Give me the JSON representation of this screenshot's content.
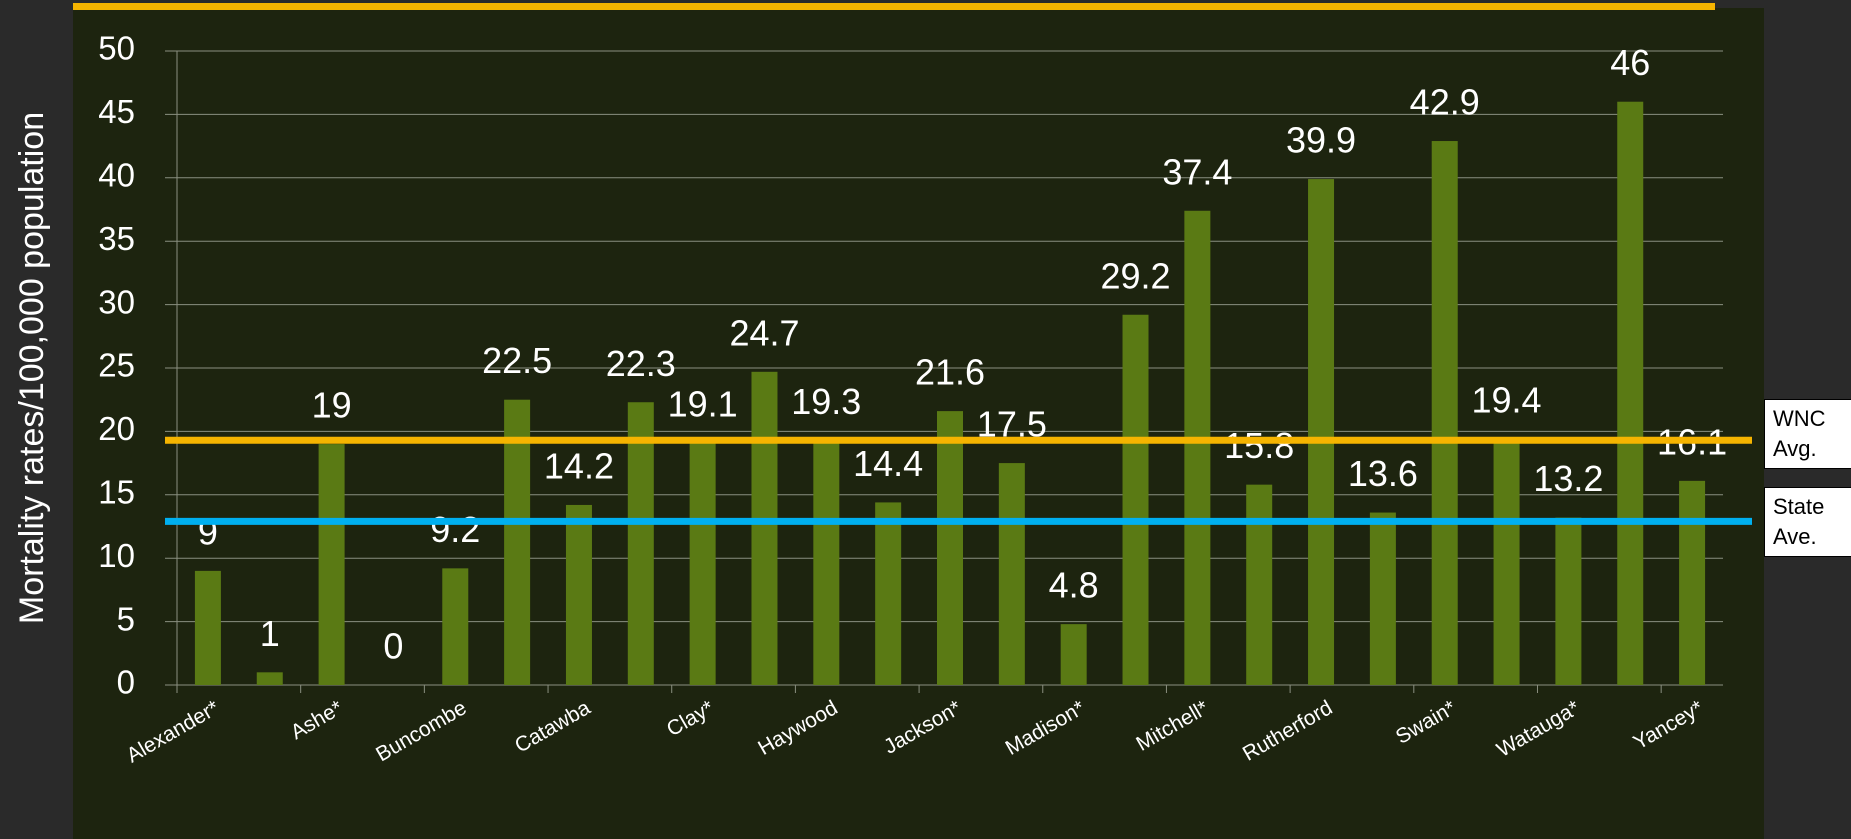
{
  "chart_data": {
    "type": "bar",
    "y_label": "Mortality rates/100,000  population",
    "categories": [
      "Alexander*",
      null,
      "Ashe*",
      null,
      "Buncombe",
      null,
      "Catawba",
      null,
      "Clay*",
      null,
      "Haywood",
      null,
      "Jackson*",
      null,
      "Madison*",
      null,
      "Mitchell*",
      null,
      "Rutherford",
      null,
      "Swain*",
      null,
      "Watauga*",
      null,
      "Yancey*"
    ],
    "values": [
      9,
      1,
      19,
      0,
      9.2,
      22.5,
      14.2,
      22.3,
      19.1,
      24.7,
      19.3,
      14.4,
      21.6,
      17.5,
      4.8,
      29.2,
      37.4,
      15.8,
      39.9,
      13.6,
      42.9,
      19.4,
      13.2,
      46,
      16.1
    ],
    "color": "#5a7a14",
    "ylim": [
      0,
      50
    ],
    "yticks": [
      0,
      5,
      10,
      15,
      20,
      25,
      30,
      35,
      40,
      45,
      50
    ],
    "grid": true,
    "reference_lines": [
      {
        "name": "WNC Avg.",
        "value": 19.3,
        "color": "#f5b400"
      },
      {
        "name": "State Ave.",
        "value": 12.9,
        "color": "#00b0f0"
      }
    ]
  }
}
